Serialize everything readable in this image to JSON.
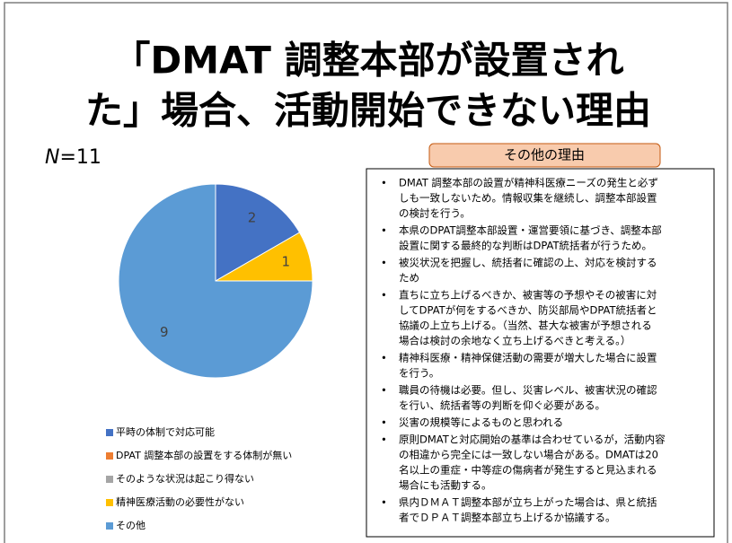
{
  "chart_data": {
    "type": "pie",
    "title": [
      "「DMAT 調整本部が設置され",
      "た」場合、活動開始できない理由"
    ],
    "n_label": {
      "italic": "N",
      "rest": "=11"
    },
    "categories": [
      "平時の体制で対応可能",
      "DPAT 調整本部の設置をする体制が無い",
      "そのような状況は起こり得ない",
      "精神医療活動の必要性がない",
      "その他"
    ],
    "values": [
      2,
      0,
      0,
      1,
      9
    ],
    "colors": [
      "#4472c4",
      "#ed7d31",
      "#a5a5a5",
      "#ffc000",
      "#5b9bd5"
    ]
  },
  "reasons": {
    "header": "その他の理由",
    "items": [
      [
        "DMAT 調整本部の設置が精神科医療ニーズの発生と必ず",
        "しも一致しないため。情報収集を継続し、調整本部設置",
        "の検討を行う。"
      ],
      [
        "本県のDPAT調整本部設置・運営要領に基づき、調整本部",
        "設置に関する最終的な判断はDPAT統括者が行うため。"
      ],
      [
        "被災状況を把握し、統括者に確認の上、対応を検討する",
        "ため"
      ],
      [
        "直ちに立ち上げるべきか、被害等の予想やその被害に対",
        "してDPATが何をするべきか、防災部局やDPAT統括者と",
        "協議の上立ち上げる。（当然、甚大な被害が予想される",
        "場合は検討の余地なく立ち上げるべきと考える。）"
      ],
      [
        "精神科医療・精神保健活動の需要が増大した場合に設置",
        "を行う。"
      ],
      [
        "職員の待機は必要。但し、災害レベル、被害状況の確認",
        "を行い、統括者等の判断を仰ぐ必要がある。"
      ],
      [
        "災害の規模等によるものと思われる"
      ],
      [
        "原則DMATと対応開始の基準は合わせているが，活動内容",
        "の相違から完全には一致しない場合がある。DMATは20",
        "名以上の重症・中等症の傷病者が発生すると見込まれる",
        "場合にも活動する。"
      ],
      [
        "県内ＤＭＡＴ調整本部が立ち上がった場合は、県と統括",
        "者でＤＰＡＴ調整本部立ち上げるか協議する。"
      ]
    ]
  }
}
